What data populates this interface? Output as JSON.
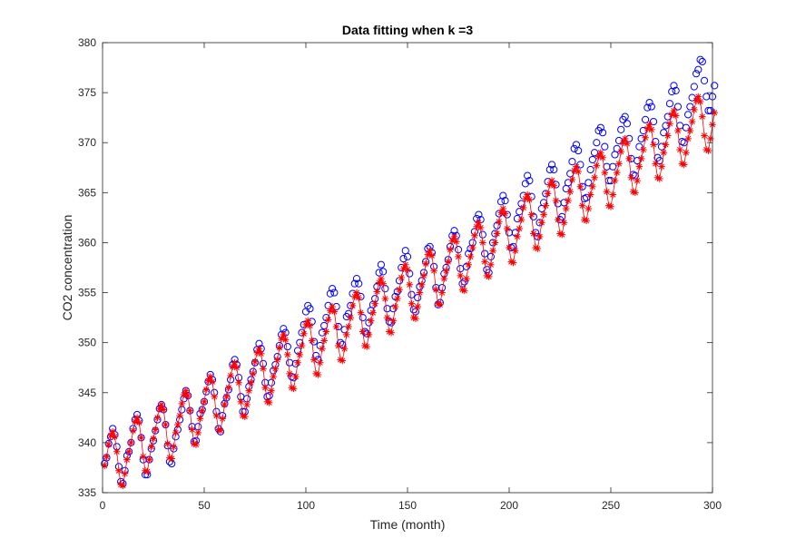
{
  "chart_data": {
    "type": "line",
    "title": "Data fitting when k =3",
    "xlabel": "Time (month)",
    "ylabel": "CO2 concentration",
    "xlim": [
      0,
      300
    ],
    "ylim": [
      335,
      380
    ],
    "xticks": [
      0,
      50,
      100,
      150,
      200,
      250,
      300
    ],
    "yticks": [
      335,
      340,
      345,
      350,
      355,
      360,
      365,
      370,
      375,
      380
    ],
    "grid": false,
    "legend": "none",
    "x_start": 1,
    "x_step": 1,
    "series": [
      {
        "marker": "circle",
        "line": false,
        "color": "#0000ff",
        "values": [
          337.9,
          338.5,
          339.9,
          340.6,
          341.4,
          340.8,
          339.6,
          337.6,
          336.1,
          335.9,
          337.2,
          338.7,
          339.1,
          340.0,
          341.4,
          342.3,
          342.8,
          342.2,
          340.5,
          338.3,
          336.8,
          336.8,
          338.3,
          339.4,
          340.2,
          341.2,
          342.3,
          343.4,
          343.8,
          343.3,
          341.8,
          339.7,
          338.1,
          337.9,
          339.4,
          340.6,
          341.3,
          342.3,
          343.3,
          344.4,
          345.2,
          344.7,
          343.2,
          341.6,
          340.1,
          340.2,
          341.6,
          342.9,
          343.3,
          344.1,
          345.1,
          346.1,
          346.8,
          346.3,
          345.0,
          343.1,
          341.4,
          341.1,
          342.7,
          343.9,
          344.5,
          345.3,
          346.3,
          347.8,
          348.3,
          347.8,
          346.5,
          344.6,
          343.1,
          343.1,
          344.4,
          345.6,
          346.3,
          347.1,
          348.0,
          349.3,
          349.9,
          349.4,
          347.9,
          346.0,
          344.6,
          344.7,
          346.0,
          347.2,
          347.8,
          348.6,
          349.7,
          350.8,
          351.4,
          351.0,
          349.6,
          348.0,
          346.6,
          346.5,
          347.9,
          349.2,
          350.0,
          351.0,
          351.8,
          353.1,
          353.7,
          353.4,
          352.1,
          350.1,
          348.7,
          348.3,
          349.7,
          351.0,
          351.7,
          352.5,
          353.7,
          354.9,
          355.4,
          355.0,
          353.6,
          351.6,
          350.0,
          349.8,
          351.3,
          352.6,
          352.9,
          353.7,
          354.9,
          355.9,
          356.4,
          355.9,
          354.6,
          352.5,
          351.1,
          350.9,
          352.0,
          353.2,
          353.8,
          354.4,
          355.6,
          357.0,
          357.8,
          357.1,
          355.4,
          353.4,
          352.1,
          352.0,
          353.4,
          354.6,
          355.1,
          356.2,
          357.5,
          358.4,
          359.2,
          358.6,
          356.9,
          354.8,
          353.3,
          353.1,
          354.5,
          355.6,
          356.2,
          357.0,
          358.1,
          359.4,
          359.6,
          359.0,
          357.6,
          355.5,
          353.8,
          354.0,
          355.5,
          356.9,
          357.5,
          358.3,
          359.6,
          360.7,
          361.2,
          360.7,
          359.3,
          357.4,
          355.9,
          356.1,
          357.6,
          358.9,
          359.4,
          360.0,
          361.1,
          362.4,
          362.8,
          362.3,
          360.8,
          358.9,
          357.3,
          357.0,
          358.6,
          360.0,
          360.9,
          361.7,
          362.9,
          364.1,
          364.7,
          364.2,
          362.8,
          361.0,
          359.5,
          359.6,
          361.0,
          362.4,
          363.1,
          363.9,
          364.7,
          365.9,
          366.7,
          366.2,
          364.6,
          362.6,
          361.0,
          360.6,
          362.0,
          363.4,
          364.0,
          364.9,
          366.1,
          367.3,
          367.8,
          367.3,
          365.8,
          363.9,
          362.3,
          362.6,
          364.0,
          365.4,
          366.0,
          366.9,
          368.1,
          369.4,
          369.8,
          369.2,
          367.8,
          365.6,
          364.4,
          364.5,
          366.0,
          367.3,
          368.3,
          369.0,
          370.0,
          371.2,
          371.5,
          371.0,
          369.6,
          367.6,
          366.2,
          366.2,
          367.6,
          368.8,
          369.4,
          370.2,
          371.3,
          372.3,
          372.6,
          371.9,
          370.4,
          368.4,
          366.8,
          366.7,
          368.2,
          369.6,
          370.4,
          371.2,
          372.3,
          373.5,
          374.0,
          373.6,
          372.1,
          370.1,
          368.5,
          368.2,
          369.6,
          371.0,
          371.7,
          372.6,
          373.9,
          375.1,
          375.7,
          375.2,
          373.6,
          371.7,
          370.1,
          370.0,
          371.5,
          372.8,
          373.6,
          374.5,
          375.6,
          376.9,
          377.3,
          378.3,
          378.1,
          376.2,
          374.6,
          373.2,
          373.2,
          374.6,
          375.7
        ]
      },
      {
        "marker": "asterisk",
        "line": true,
        "color": "#ff0000",
        "values": [
          337.7,
          338.6,
          339.8,
          340.7,
          341.1,
          340.6,
          339.1,
          337.2,
          335.8,
          335.7,
          336.9,
          338.3,
          339.1,
          340.0,
          341.2,
          342.1,
          342.5,
          342.0,
          340.5,
          338.6,
          337.2,
          337.1,
          338.3,
          339.6,
          340.4,
          341.3,
          342.5,
          343.4,
          343.8,
          343.3,
          341.8,
          339.9,
          338.5,
          338.4,
          339.6,
          341.0,
          341.8,
          342.7,
          343.9,
          344.8,
          345.2,
          344.7,
          343.2,
          341.3,
          339.9,
          339.8,
          341.0,
          342.4,
          343.2,
          344.1,
          345.3,
          346.2,
          346.6,
          346.1,
          344.6,
          342.7,
          341.3,
          341.2,
          342.4,
          343.8,
          344.6,
          345.5,
          346.7,
          347.6,
          348.0,
          347.5,
          346.0,
          344.1,
          342.7,
          342.6,
          343.8,
          345.2,
          346.0,
          346.9,
          348.1,
          349.0,
          349.4,
          348.9,
          347.4,
          345.5,
          344.1,
          344.0,
          345.2,
          346.6,
          347.4,
          348.3,
          349.5,
          350.4,
          350.8,
          350.3,
          348.8,
          346.9,
          345.5,
          345.4,
          346.6,
          348.0,
          348.8,
          349.7,
          350.9,
          351.8,
          352.2,
          351.7,
          350.2,
          348.3,
          346.9,
          346.8,
          348.0,
          349.4,
          350.2,
          351.1,
          352.3,
          353.2,
          353.6,
          353.1,
          351.6,
          349.7,
          348.3,
          348.2,
          349.4,
          350.8,
          351.6,
          352.5,
          353.7,
          354.6,
          355.0,
          354.5,
          353.0,
          351.1,
          349.7,
          349.6,
          350.8,
          352.2,
          353.0,
          353.9,
          355.1,
          356.0,
          356.4,
          355.9,
          354.4,
          352.5,
          351.1,
          351.0,
          352.2,
          353.6,
          354.4,
          355.3,
          356.5,
          357.4,
          357.8,
          357.3,
          355.8,
          353.9,
          352.5,
          352.4,
          353.6,
          355.0,
          355.8,
          356.7,
          357.9,
          358.8,
          359.2,
          358.7,
          357.2,
          355.3,
          353.9,
          353.8,
          355.0,
          356.4,
          357.2,
          358.1,
          359.3,
          360.2,
          360.6,
          360.1,
          358.6,
          356.7,
          355.3,
          355.2,
          356.4,
          357.8,
          358.6,
          359.5,
          360.7,
          361.6,
          362.0,
          361.5,
          360.0,
          358.1,
          356.7,
          356.6,
          357.8,
          359.2,
          360.0,
          360.9,
          362.1,
          363.0,
          363.4,
          362.9,
          361.4,
          359.5,
          358.1,
          358.0,
          359.2,
          360.6,
          361.4,
          362.3,
          363.5,
          364.4,
          364.8,
          364.3,
          362.8,
          360.9,
          359.5,
          359.4,
          360.6,
          362.0,
          362.8,
          363.7,
          364.9,
          365.8,
          366.2,
          365.7,
          364.2,
          362.3,
          360.9,
          360.8,
          362.0,
          363.4,
          364.2,
          365.1,
          366.3,
          367.2,
          367.6,
          367.1,
          365.6,
          363.7,
          362.3,
          362.2,
          363.4,
          364.8,
          365.6,
          366.5,
          367.7,
          368.6,
          369.0,
          368.5,
          367.0,
          365.1,
          363.7,
          363.6,
          364.8,
          366.2,
          367.0,
          367.9,
          369.1,
          370.0,
          370.4,
          369.9,
          368.4,
          366.5,
          365.1,
          365.0,
          366.2,
          367.6,
          368.4,
          369.3,
          370.5,
          371.4,
          371.8,
          371.3,
          369.8,
          367.9,
          366.5,
          366.4,
          367.6,
          369.0,
          369.8,
          370.7,
          371.9,
          372.8,
          373.2,
          372.7,
          371.2,
          369.3,
          367.9,
          367.8,
          369.0,
          370.4,
          371.2,
          372.1,
          373.3,
          374.2,
          374.6,
          374.1,
          372.6,
          370.7,
          369.3,
          369.2,
          370.4,
          371.8,
          373.0
        ]
      }
    ]
  }
}
